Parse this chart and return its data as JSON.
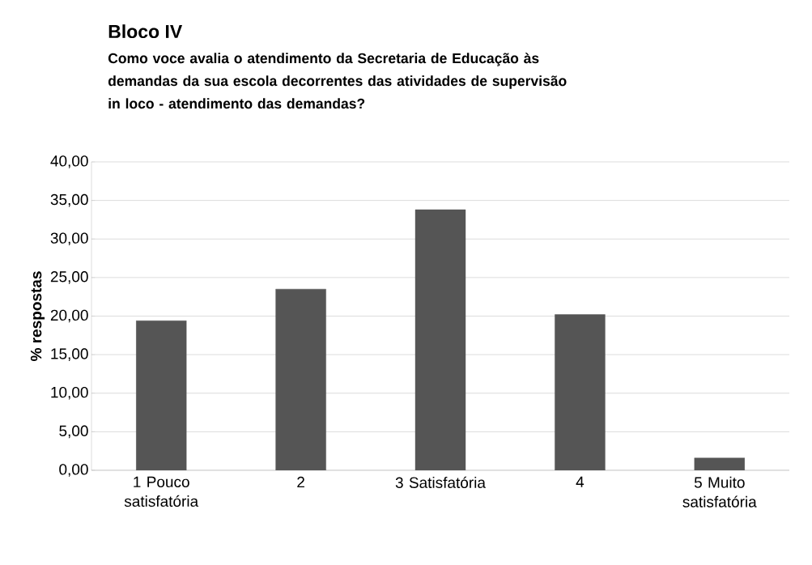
{
  "chart_data": {
    "type": "bar",
    "title": "Bloco IV",
    "subtitle": "Como voce avalia o atendimento da Secretaria de Educação às demandas da sua escola decorrentes das atividades de supervisão in loco - atendimento das demandas?",
    "ylabel": "% respostas",
    "categories": [
      "1 Pouco satisfatória",
      "2",
      "3 Satisfatória",
      "4",
      "5 Muito satisfatória"
    ],
    "values": [
      19.4,
      23.5,
      33.8,
      20.2,
      1.6
    ],
    "color": "#555555",
    "ylim": [
      0,
      40
    ],
    "yticks": [
      {
        "value": 0,
        "label": "0,00"
      },
      {
        "value": 5,
        "label": "5,00"
      },
      {
        "value": 10,
        "label": "10,00"
      },
      {
        "value": 15,
        "label": "15,00"
      },
      {
        "value": 20,
        "label": "20,00"
      },
      {
        "value": 25,
        "label": "25,00"
      },
      {
        "value": 30,
        "label": "30,00"
      },
      {
        "value": 35,
        "label": "35,00"
      },
      {
        "value": 40,
        "label": "40,00"
      }
    ],
    "grid": "y"
  }
}
